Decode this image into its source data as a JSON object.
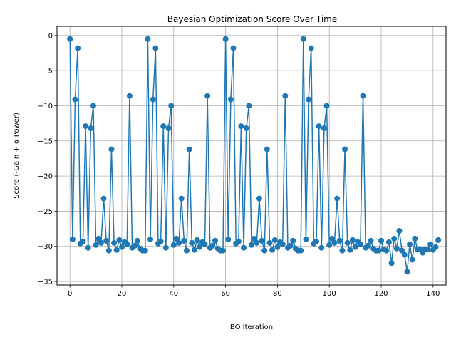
{
  "chart_data": {
    "type": "line",
    "title": "Bayesian Optimization Score Over Time",
    "xlabel": "BO Iteration",
    "ylabel": "Score (-Gain + α·Power)",
    "xlim": [
      -5,
      145
    ],
    "ylim": [
      -35.5,
      1.3
    ],
    "xticks": [
      0,
      20,
      40,
      60,
      80,
      100,
      120,
      140
    ],
    "yticks": [
      0,
      -5,
      -10,
      -15,
      -20,
      -25,
      -30,
      -35
    ],
    "grid": true,
    "markers": true,
    "color": "#1f77b4",
    "y": [
      -0.5,
      -29.0,
      -9.1,
      -1.8,
      -29.6,
      -29.3,
      -12.9,
      -30.2,
      -13.2,
      -10.0,
      -29.8,
      -28.9,
      -29.5,
      -23.2,
      -29.2,
      -30.6,
      -16.2,
      -29.5,
      -30.5,
      -29.1,
      -30.1,
      -29.4,
      -29.7,
      -8.6,
      -30.2,
      -29.9,
      -29.2,
      -30.3,
      -30.6,
      -30.6,
      -0.5,
      -29.0,
      -9.1,
      -1.8,
      -29.6,
      -29.3,
      -12.9,
      -30.2,
      -13.2,
      -10.0,
      -29.8,
      -28.9,
      -29.5,
      -23.2,
      -29.2,
      -30.6,
      -16.2,
      -29.5,
      -30.5,
      -29.1,
      -30.1,
      -29.4,
      -29.7,
      -8.6,
      -30.2,
      -29.9,
      -29.2,
      -30.3,
      -30.6,
      -30.6,
      -0.5,
      -29.0,
      -9.1,
      -1.8,
      -29.6,
      -29.3,
      -12.9,
      -30.2,
      -13.2,
      -10.0,
      -29.8,
      -28.9,
      -29.5,
      -23.2,
      -29.2,
      -30.6,
      -16.2,
      -29.5,
      -30.5,
      -29.1,
      -30.1,
      -29.4,
      -29.7,
      -8.6,
      -30.2,
      -29.9,
      -29.2,
      -30.3,
      -30.6,
      -30.6,
      -0.5,
      -29.0,
      -9.1,
      -1.8,
      -29.6,
      -29.3,
      -12.9,
      -30.2,
      -13.2,
      -10.0,
      -29.8,
      -28.9,
      -29.5,
      -23.2,
      -29.2,
      -30.6,
      -16.2,
      -29.5,
      -30.5,
      -29.1,
      -30.1,
      -29.4,
      -29.7,
      -8.6,
      -30.2,
      -29.9,
      -29.2,
      -30.3,
      -30.6,
      -30.6,
      -29.2,
      -30.4,
      -30.6,
      -29.4,
      -32.4,
      -28.9,
      -30.3,
      -27.8,
      -30.6,
      -31.2,
      -33.6,
      -29.7,
      -31.9,
      -28.9,
      -30.4,
      -30.4,
      -30.9,
      -30.4,
      -30.4,
      -29.7,
      -30.5,
      -30.1,
      -29.1
    ]
  }
}
